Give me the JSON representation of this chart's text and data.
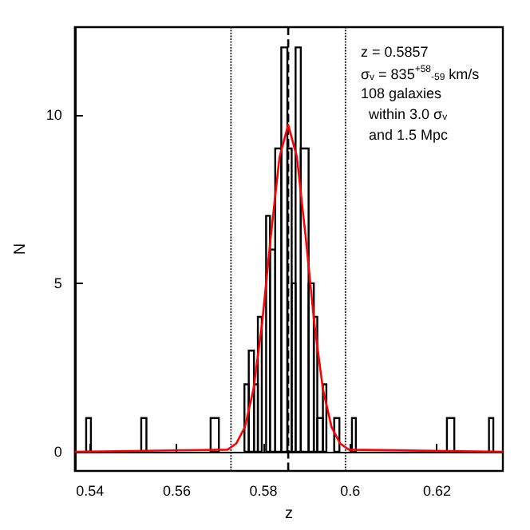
{
  "chart_data": {
    "type": "histogram",
    "xlabel": "z",
    "ylabel": "N",
    "bins": [
      0.5391,
      0.5402,
      0.5518,
      0.553,
      0.5678,
      0.5697,
      0.5756,
      0.5766,
      0.5778,
      0.5787,
      0.5796,
      0.5806,
      0.5815,
      0.5827,
      0.5841,
      0.5855,
      0.5865,
      0.5874,
      0.5886,
      0.5904,
      0.5916,
      0.5924,
      0.5937,
      0.5945,
      0.5963,
      0.5975,
      0.6004,
      0.6013,
      0.6223,
      0.624,
      0.632,
      0.633
    ],
    "values": [
      1,
      0,
      1,
      0,
      1,
      0,
      2,
      3,
      2,
      4,
      0,
      7,
      6,
      9,
      12,
      9,
      5,
      12,
      9,
      5,
      4,
      1,
      2,
      0,
      1,
      0,
      1,
      0,
      1,
      0,
      1
    ],
    "color": "#000000",
    "series": [
      {
        "type": "line",
        "color": "#ff0000",
        "x": [
          0.5365,
          0.5717,
          0.5737,
          0.5757,
          0.5777,
          0.5797,
          0.5817,
          0.5837,
          0.5857,
          0.5877,
          0.5897,
          0.5917,
          0.5937,
          0.5957,
          0.5977,
          0.5997,
          0.6352
        ],
        "values": [
          0,
          0.06,
          0.24,
          0.73,
          1.86,
          3.83,
          6.41,
          8.75,
          9.7,
          8.75,
          6.41,
          3.83,
          1.86,
          0.73,
          0.24,
          0.06,
          0
        ]
      }
    ],
    "ref_lines": [
      {
        "axis": "x",
        "value": 0.5857,
        "line_style": "dashed",
        "color": "#000000"
      },
      {
        "axis": "x",
        "value": 0.5725,
        "line_style": "dotted",
        "color": "#000000"
      },
      {
        "axis": "x",
        "value": 0.5989,
        "line_style": "dotted",
        "color": "#000000"
      }
    ],
    "annotations": [
      "z = 0.5857",
      "σ$_{v}$ = 835$^{+58}$$_{-59}$ km/s",
      "108 galaxies",
      "  within 3.0 σ$_{v}$",
      "  and 1.5 Mpc"
    ],
    "xlim": [
      0.5365,
      0.6352
    ],
    "ylim": [
      -0.57,
      12.6
    ],
    "xticks": [
      0.54,
      0.56,
      0.58,
      0.6,
      0.62
    ],
    "yticks": [
      0,
      5,
      10
    ]
  }
}
